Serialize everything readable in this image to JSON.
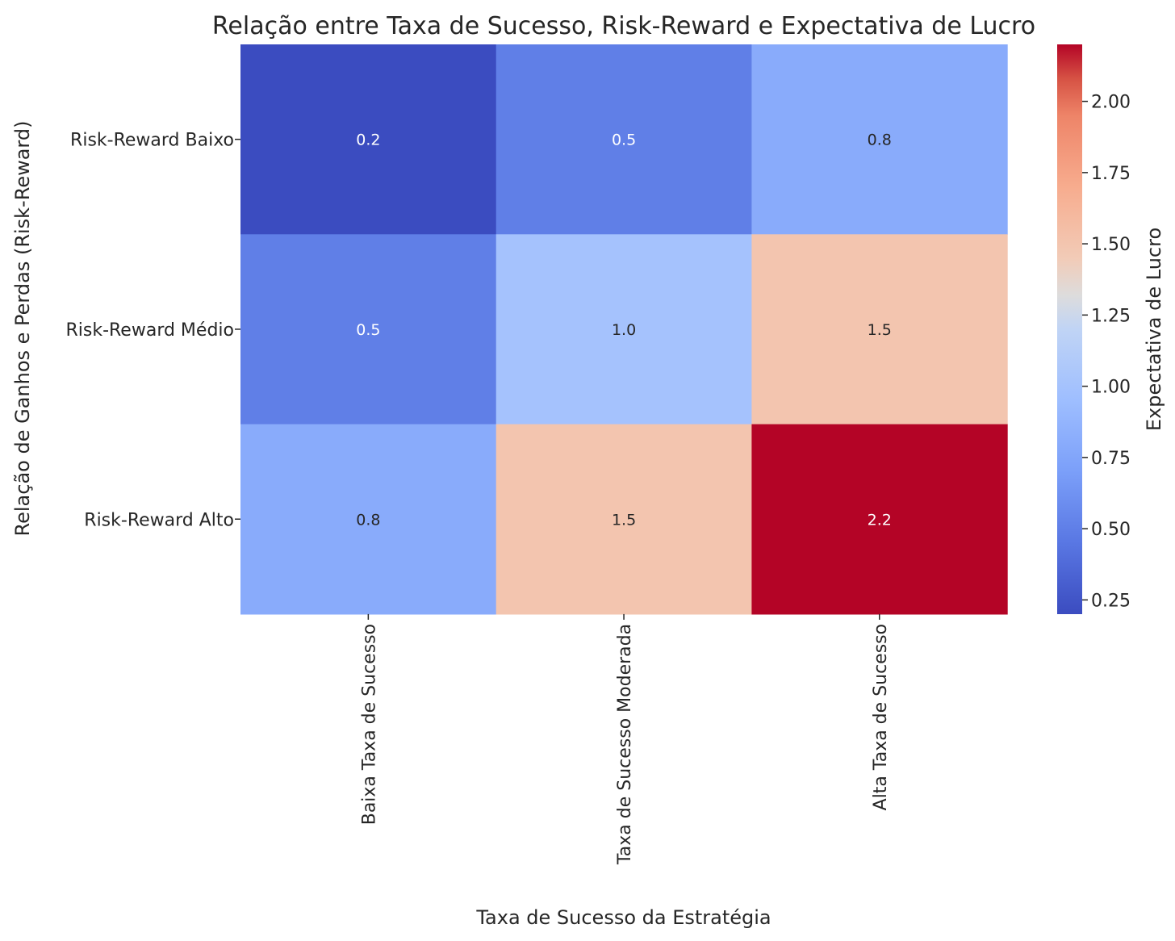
{
  "chart_data": {
    "type": "heatmap",
    "title": "Relação entre Taxa de Sucesso, Risk-Reward e Expectativa de Lucro",
    "xlabel": "Taxa de Sucesso da Estratégia",
    "ylabel": "Relação de Ganhos e Perdas (Risk-Reward)",
    "x_categories": [
      "Baixa Taxa de Sucesso",
      "Taxa de Sucesso Moderada",
      "Alta Taxa de Sucesso"
    ],
    "y_categories": [
      "Risk-Reward Baixo",
      "Risk-Reward Médio",
      "Risk-Reward Alto"
    ],
    "values": [
      [
        0.2,
        0.5,
        0.8
      ],
      [
        0.5,
        1.0,
        1.5
      ],
      [
        0.8,
        1.5,
        2.2
      ]
    ],
    "annotations": [
      [
        "0.2",
        "0.5",
        "0.8"
      ],
      [
        "0.5",
        "1.0",
        "1.5"
      ],
      [
        "0.8",
        "1.5",
        "2.2"
      ]
    ],
    "colormap": "coolwarm",
    "vmin": 0.2,
    "vmax": 2.2,
    "colorbar": {
      "label": "Expectativa de Lucro",
      "ticks": [
        0.25,
        0.5,
        0.75,
        1.0,
        1.25,
        1.5,
        1.75,
        2.0
      ],
      "tick_labels": [
        "0.25",
        "0.50",
        "0.75",
        "1.00",
        "1.25",
        "1.50",
        "1.75",
        "2.00"
      ]
    }
  }
}
